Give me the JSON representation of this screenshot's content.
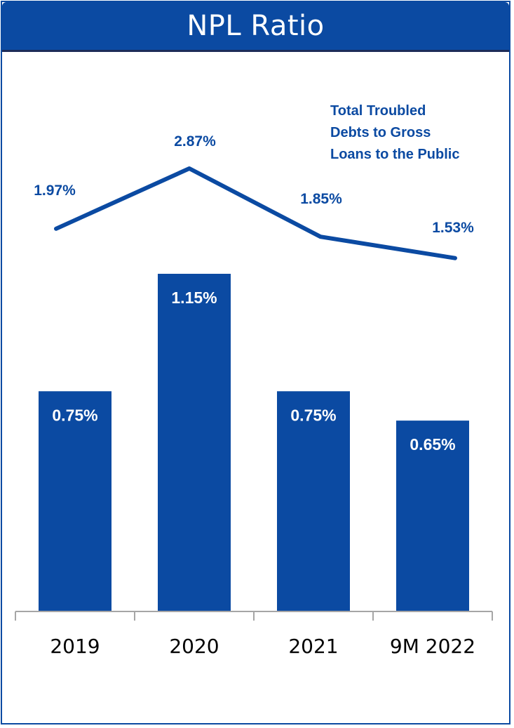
{
  "header": {
    "title": "NPL Ratio"
  },
  "chart_data": {
    "type": "bar",
    "title": "NPL Ratio",
    "categories": [
      "2019",
      "2020",
      "2021",
      "9M 2022"
    ],
    "series": [
      {
        "values": [
          0.75,
          1.15,
          0.75,
          0.65
        ],
        "labels": [
          "0.75%",
          "1.15%",
          "0.75%",
          "0.65%"
        ],
        "color": "#0b4aa2"
      },
      {
        "name": "Total Troubled Debts to Gross Loans to the Public",
        "type": "line",
        "values": [
          1.97,
          2.87,
          1.85,
          1.53
        ],
        "labels": [
          "1.97%",
          "2.87%",
          "1.85%",
          "1.53%"
        ],
        "color": "#0b4aa2"
      }
    ],
    "legend_lines": [
      "Total Troubled",
      "Debts to Gross",
      "Loans to the Public"
    ],
    "legend_position": "top-right",
    "grid": false,
    "ylim": [
      0,
      1.15
    ]
  },
  "colors": {
    "brand": "#0b4aa2",
    "header_border": "#1d2c58"
  }
}
